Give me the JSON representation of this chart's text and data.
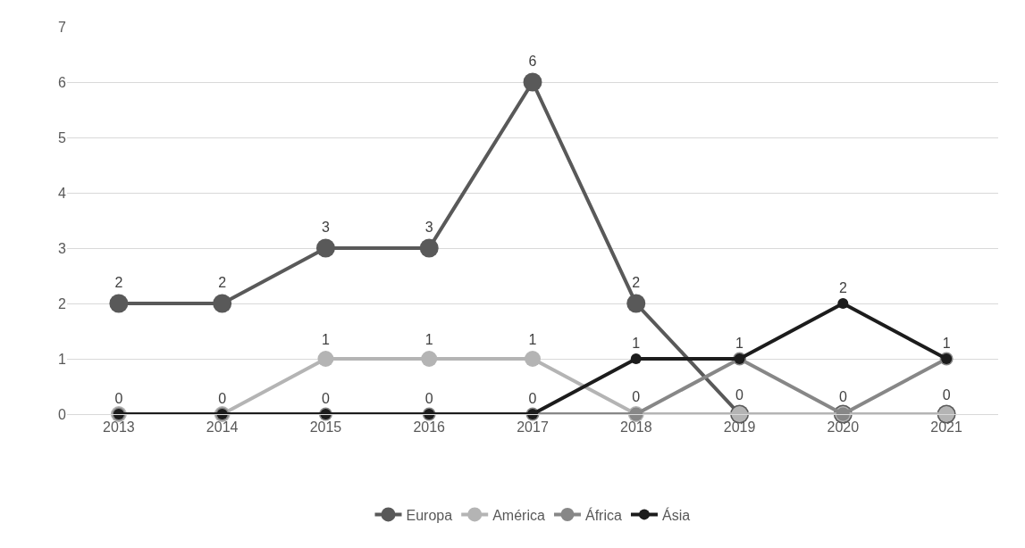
{
  "chart_data": {
    "type": "line",
    "categories": [
      "2013",
      "2014",
      "2015",
      "2016",
      "2017",
      "2018",
      "2019",
      "2020",
      "2021"
    ],
    "series": [
      {
        "name": "Europa",
        "color": "#595959",
        "values": [
          2,
          2,
          3,
          3,
          6,
          2,
          0,
          0,
          0
        ],
        "value_labels": [
          "2",
          "2",
          "3",
          "3",
          "6",
          "2",
          null,
          null,
          null
        ]
      },
      {
        "name": "América",
        "color": "#b4b4b4",
        "values": [
          0,
          0,
          1,
          1,
          1,
          0,
          0,
          0,
          0
        ],
        "value_labels": [
          null,
          null,
          "1",
          "1",
          "1",
          null,
          "0",
          null,
          "0"
        ]
      },
      {
        "name": "África",
        "color": "#878787",
        "values": [
          0,
          0,
          0,
          0,
          0,
          0,
          1,
          0,
          1
        ],
        "value_labels": [
          null,
          null,
          null,
          null,
          null,
          "0",
          null,
          "0",
          null
        ]
      },
      {
        "name": "Ásia",
        "color": "#1c1c1c",
        "values": [
          0,
          0,
          0,
          0,
          0,
          1,
          1,
          2,
          1
        ],
        "value_labels": [
          "0",
          "0",
          "0",
          "0",
          "0",
          "1",
          "1",
          "2",
          "1"
        ]
      }
    ],
    "ylim": [
      0,
      7
    ],
    "yticks": [
      0,
      1,
      2,
      3,
      4,
      5,
      6,
      7
    ],
    "grid": "y",
    "legend": "bottom",
    "marker": "circle",
    "line_style": "solid"
  }
}
